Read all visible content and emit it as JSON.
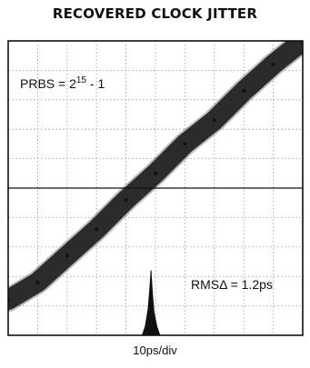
{
  "chart_data": {
    "type": "scatter",
    "title": "RECOVERED CLOCK JITTER",
    "xlabel": "10ps/div",
    "ylabel": "",
    "grid": true,
    "divisions": {
      "x": 10,
      "y": 10
    },
    "baseline_division": 5,
    "annotations": {
      "prbs_prefix": "PRBS = 2",
      "prbs_exponent": "15",
      "prbs_suffix": " - 1",
      "rms": "RMSΔ = 1.2ps"
    },
    "series": [
      {
        "role": "clock-edge-trace",
        "x": [
          0,
          1,
          2,
          3,
          4,
          5,
          6,
          7,
          8,
          9,
          10
        ],
        "y": [
          1.2,
          1.8,
          2.7,
          3.6,
          4.6,
          5.5,
          6.5,
          7.3,
          8.3,
          9.2,
          10.0
        ]
      },
      {
        "role": "jitter-histogram",
        "x": [
          4.55,
          4.65,
          4.75,
          4.8,
          4.85,
          4.9,
          4.95,
          5.05,
          5.15
        ],
        "y": [
          0,
          0.3,
          0.9,
          1.5,
          2.2,
          1.4,
          0.8,
          0.3,
          0
        ]
      }
    ],
    "colors": {
      "trace": "#111111",
      "grid": "#9a9a9a",
      "axis": "#111111"
    }
  }
}
